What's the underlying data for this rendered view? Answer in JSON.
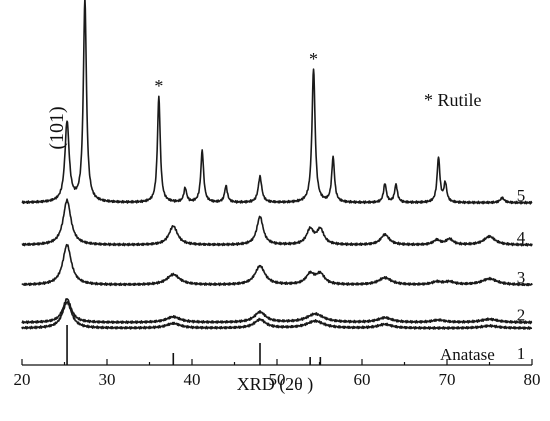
{
  "chart_data": {
    "type": "line",
    "xlabel": "XRD (2θ )",
    "xlim": [
      20,
      80
    ],
    "x_ticks": [
      20,
      30,
      40,
      50,
      60,
      70,
      80
    ],
    "y_axis_shown": false,
    "legend_text": "* Rutile",
    "legend_placement": "top-right",
    "peak_label": "(101)",
    "peak_label_x": 25.3,
    "star_marker": "*",
    "star_peaks": [
      27.4,
      36.1,
      54.3
    ],
    "reference": {
      "name": "Anatase",
      "label": "1",
      "lines": [
        {
          "x": 25.3,
          "height": 1.0
        },
        {
          "x": 37.8,
          "height": 0.3
        },
        {
          "x": 48.0,
          "height": 0.55
        },
        {
          "x": 53.9,
          "height": 0.2
        },
        {
          "x": 55.1,
          "height": 0.2
        }
      ]
    },
    "series": [
      {
        "label": "2",
        "offset": 0.2,
        "peaks": [
          [
            25.3,
            0.5,
            0.6
          ],
          [
            37.8,
            0.12,
            1.0
          ],
          [
            48.0,
            0.22,
            0.8
          ],
          [
            54.5,
            0.18,
            1.2
          ],
          [
            62.7,
            0.1,
            1.0
          ],
          [
            69.0,
            0.05,
            0.9
          ],
          [
            75.0,
            0.07,
            1.2
          ]
        ]
      },
      {
        "label": "",
        "offset": 0.08,
        "peaks": [
          [
            25.3,
            0.55,
            0.65
          ],
          [
            37.8,
            0.1,
            1.0
          ],
          [
            48.0,
            0.18,
            0.8
          ],
          [
            54.5,
            0.15,
            1.2
          ],
          [
            62.7,
            0.08,
            1.0
          ],
          [
            75.0,
            0.05,
            1.2
          ]
        ]
      },
      {
        "label": "3",
        "offset": 1.0,
        "peaks": [
          [
            25.3,
            0.85,
            0.6
          ],
          [
            37.8,
            0.22,
            0.9
          ],
          [
            48.0,
            0.4,
            0.7
          ],
          [
            53.9,
            0.22,
            0.6
          ],
          [
            55.1,
            0.22,
            0.6
          ],
          [
            62.7,
            0.15,
            0.9
          ],
          [
            68.8,
            0.06,
            0.7
          ],
          [
            70.3,
            0.06,
            0.7
          ],
          [
            75.0,
            0.13,
            1.1
          ]
        ]
      },
      {
        "label": "4",
        "offset": 1.85,
        "peaks": [
          [
            25.3,
            0.95,
            0.55
          ],
          [
            37.8,
            0.4,
            0.6
          ],
          [
            48.0,
            0.6,
            0.45
          ],
          [
            53.9,
            0.32,
            0.5
          ],
          [
            55.1,
            0.32,
            0.5
          ],
          [
            62.7,
            0.22,
            0.6
          ],
          [
            68.8,
            0.1,
            0.5
          ],
          [
            70.3,
            0.12,
            0.5
          ],
          [
            75.0,
            0.18,
            0.8
          ]
        ]
      },
      {
        "label": "5",
        "offset": 2.75,
        "peaks": [
          [
            25.3,
            1.7,
            0.3
          ],
          [
            27.4,
            4.3,
            0.22
          ],
          [
            36.1,
            2.25,
            0.2
          ],
          [
            39.2,
            0.3,
            0.2
          ],
          [
            41.2,
            1.1,
            0.2
          ],
          [
            44.0,
            0.35,
            0.2
          ],
          [
            48.0,
            0.55,
            0.25
          ],
          [
            54.3,
            2.85,
            0.22
          ],
          [
            56.6,
            0.95,
            0.2
          ],
          [
            62.7,
            0.4,
            0.2
          ],
          [
            64.0,
            0.38,
            0.2
          ],
          [
            69.0,
            0.95,
            0.2
          ],
          [
            69.8,
            0.4,
            0.2
          ],
          [
            76.5,
            0.1,
            0.3
          ]
        ]
      }
    ]
  }
}
